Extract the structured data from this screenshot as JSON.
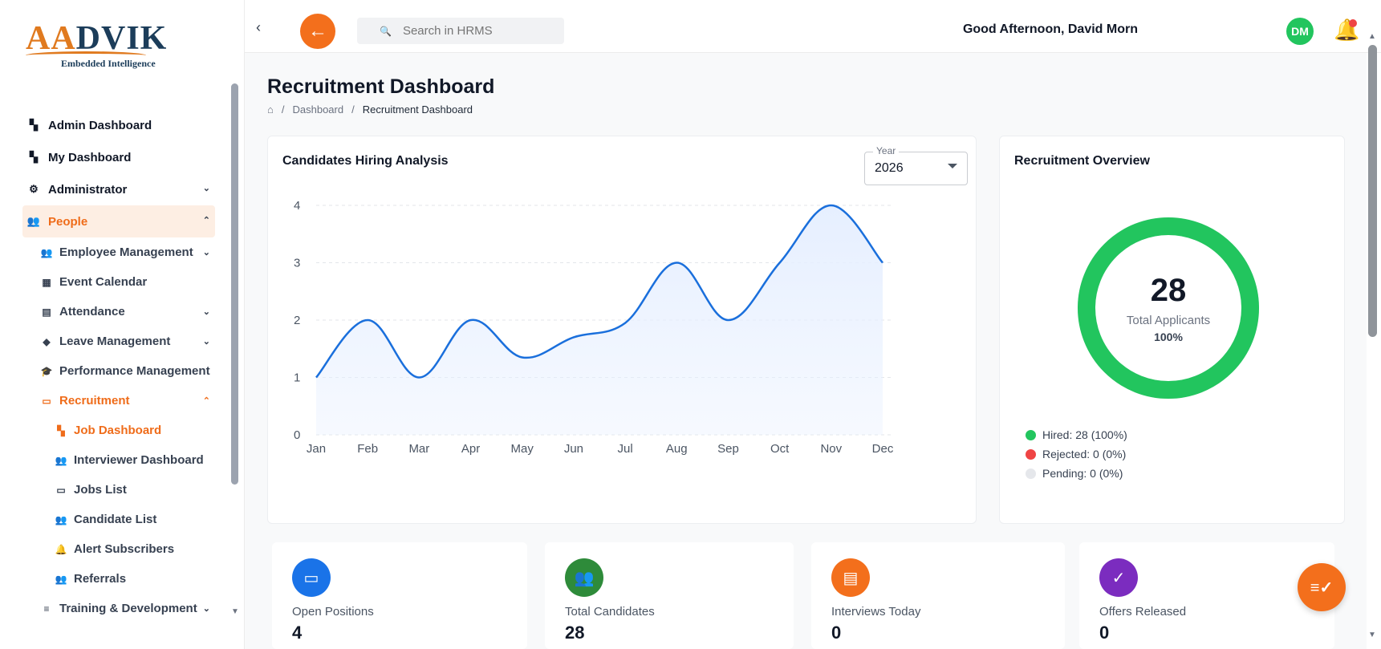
{
  "logo": {
    "brand": "AADVIK",
    "tagline": "Embedded Intelligence"
  },
  "sidebar": {
    "items": [
      {
        "label": "Admin Dashboard",
        "icon": "dashboard-icon"
      },
      {
        "label": "My Dashboard",
        "icon": "dashboard-icon"
      },
      {
        "label": "Administrator",
        "icon": "admin-icon"
      },
      {
        "label": "People",
        "icon": "people-icon"
      }
    ],
    "people_sub": [
      {
        "label": "Employee Management",
        "icon": "people-icon"
      },
      {
        "label": "Event Calendar",
        "icon": "calendar-icon"
      },
      {
        "label": "Attendance",
        "icon": "attendance-icon"
      },
      {
        "label": "Leave Management",
        "icon": "leave-icon"
      },
      {
        "label": "Performance Management",
        "icon": "graduation-cap-icon"
      },
      {
        "label": "Recruitment",
        "icon": "briefcase-icon"
      }
    ],
    "recruitment_sub": [
      {
        "label": "Job Dashboard",
        "icon": "dashboard-icon"
      },
      {
        "label": "Interviewer Dashboard",
        "icon": "people-icon"
      },
      {
        "label": "Jobs List",
        "icon": "briefcase-icon"
      },
      {
        "label": "Candidate List",
        "icon": "people-icon"
      },
      {
        "label": "Alert Subscribers",
        "icon": "bell-icon"
      },
      {
        "label": "Referrals",
        "icon": "people-icon"
      }
    ],
    "after": [
      {
        "label": "Training & Development",
        "icon": "training-icon"
      }
    ]
  },
  "topbar": {
    "search_placeholder": "Search in HRMS",
    "greeting": "Good Afternoon, David Morn",
    "avatar_initials": "DM"
  },
  "page": {
    "title": "Recruitment Dashboard",
    "breadcrumb": [
      "Dashboard",
      "Recruitment Dashboard"
    ]
  },
  "hiring_card": {
    "title": "Candidates Hiring Analysis",
    "year_label": "Year",
    "year_value": "2026"
  },
  "chart_data": {
    "type": "area",
    "categories": [
      "Jan",
      "Feb",
      "Mar",
      "Apr",
      "May",
      "Jun",
      "Jul",
      "Aug",
      "Sep",
      "Oct",
      "Nov",
      "Dec"
    ],
    "values": [
      1,
      2,
      1,
      2,
      1.35,
      1.7,
      1.95,
      3,
      2,
      3,
      4,
      3
    ],
    "yticks": [
      0,
      1,
      2,
      3,
      4
    ],
    "ylim": [
      0,
      4
    ],
    "grid": true,
    "colors": {
      "line": "#1a6fdc",
      "fill": "#e6efff"
    }
  },
  "overview_card": {
    "title": "Recruitment Overview",
    "total": "28",
    "total_label": "Total Applicants",
    "total_pct": "100%",
    "legend": [
      {
        "label": "Hired: 28 (100%)",
        "color": "#22c55e"
      },
      {
        "label": "Rejected: 0 (0%)",
        "color": "#ef4444"
      },
      {
        "label": "Pending: 0 (0%)",
        "color": "#e5e7eb"
      }
    ],
    "donut_color": "#22c55e",
    "hired_fraction": 1.0
  },
  "stats": [
    {
      "label": "Open Positions",
      "value": "4",
      "color": "#1a73e8",
      "icon": "briefcase-icon"
    },
    {
      "label": "Total Candidates",
      "value": "28",
      "color": "#2e8b3a",
      "icon": "people-icon"
    },
    {
      "label": "Interviews Today",
      "value": "0",
      "color": "#f36f1c",
      "icon": "clipboard-icon"
    },
    {
      "label": "Offers Released",
      "value": "0",
      "color": "#7b2cbf",
      "icon": "check-circle-icon"
    }
  ]
}
